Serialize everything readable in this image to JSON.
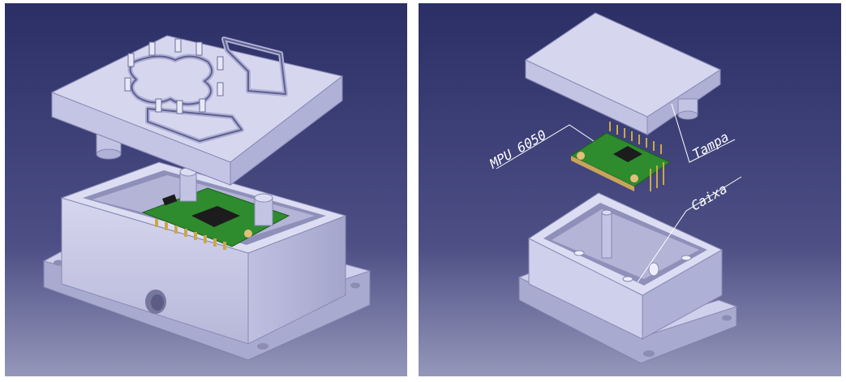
{
  "figure": {
    "panels": [
      {
        "id": "assembled-view"
      },
      {
        "id": "exploded-view"
      }
    ],
    "callouts": {
      "sensor": "MPU 6050",
      "lid": "Tampa",
      "box": "Caixa"
    },
    "colors": {
      "background_top": "#2b2f66",
      "background_bottom": "#8f91b5",
      "part_body": "#c9c9e6",
      "part_shadow": "#9d9dc4",
      "pcb_green": "#2e8b2e",
      "chip_black": "#1c1c1c",
      "pin_gold": "#c9a84a",
      "callout_line": "#ffffff"
    }
  }
}
